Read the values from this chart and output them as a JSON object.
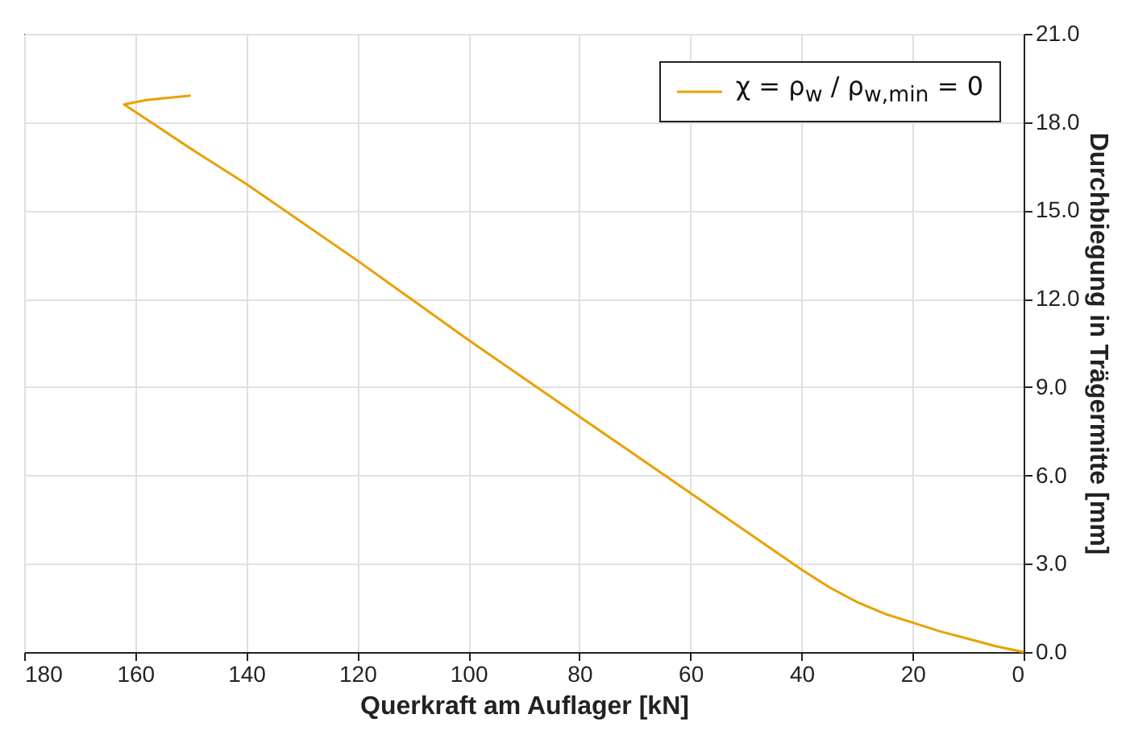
{
  "chart_data": {
    "type": "line",
    "xlabel": "Querkraft am Auflager [kN]",
    "ylabel": "Durchbiegung in Trägermitte [mm]",
    "xlim": [
      180,
      0
    ],
    "xticks": [
      0,
      20,
      40,
      60,
      80,
      100,
      120,
      140,
      160,
      180
    ],
    "ylim": [
      0,
      21
    ],
    "yticks": [
      {
        "value": 0,
        "label": "0.0"
      },
      {
        "value": 3,
        "label": "3.0"
      },
      {
        "value": 6,
        "label": "6.0"
      },
      {
        "value": 9,
        "label": "9.0"
      },
      {
        "value": 12,
        "label": "12.0"
      },
      {
        "value": 15,
        "label": "15.0"
      },
      {
        "value": 18,
        "label": "18.0"
      },
      {
        "value": 21,
        "label": "21.0"
      }
    ],
    "grid": true,
    "legend": "top right",
    "marker": "none",
    "line_style": "solid",
    "series": [
      {
        "name": "χ = ρ$_{w}$ / ρ$_{w,min}$ = 0",
        "color": "#e8a100",
        "x": [
          0,
          5,
          10,
          15,
          20,
          25,
          30,
          35,
          40,
          60,
          80,
          100,
          120,
          140,
          150,
          158,
          162,
          158,
          150
        ],
        "values": [
          0,
          0.2,
          0.45,
          0.7,
          1.0,
          1.3,
          1.7,
          2.2,
          2.8,
          5.4,
          8.0,
          10.6,
          13.3,
          15.9,
          17.1,
          18.1,
          18.6,
          18.75,
          18.9
        ]
      }
    ]
  }
}
